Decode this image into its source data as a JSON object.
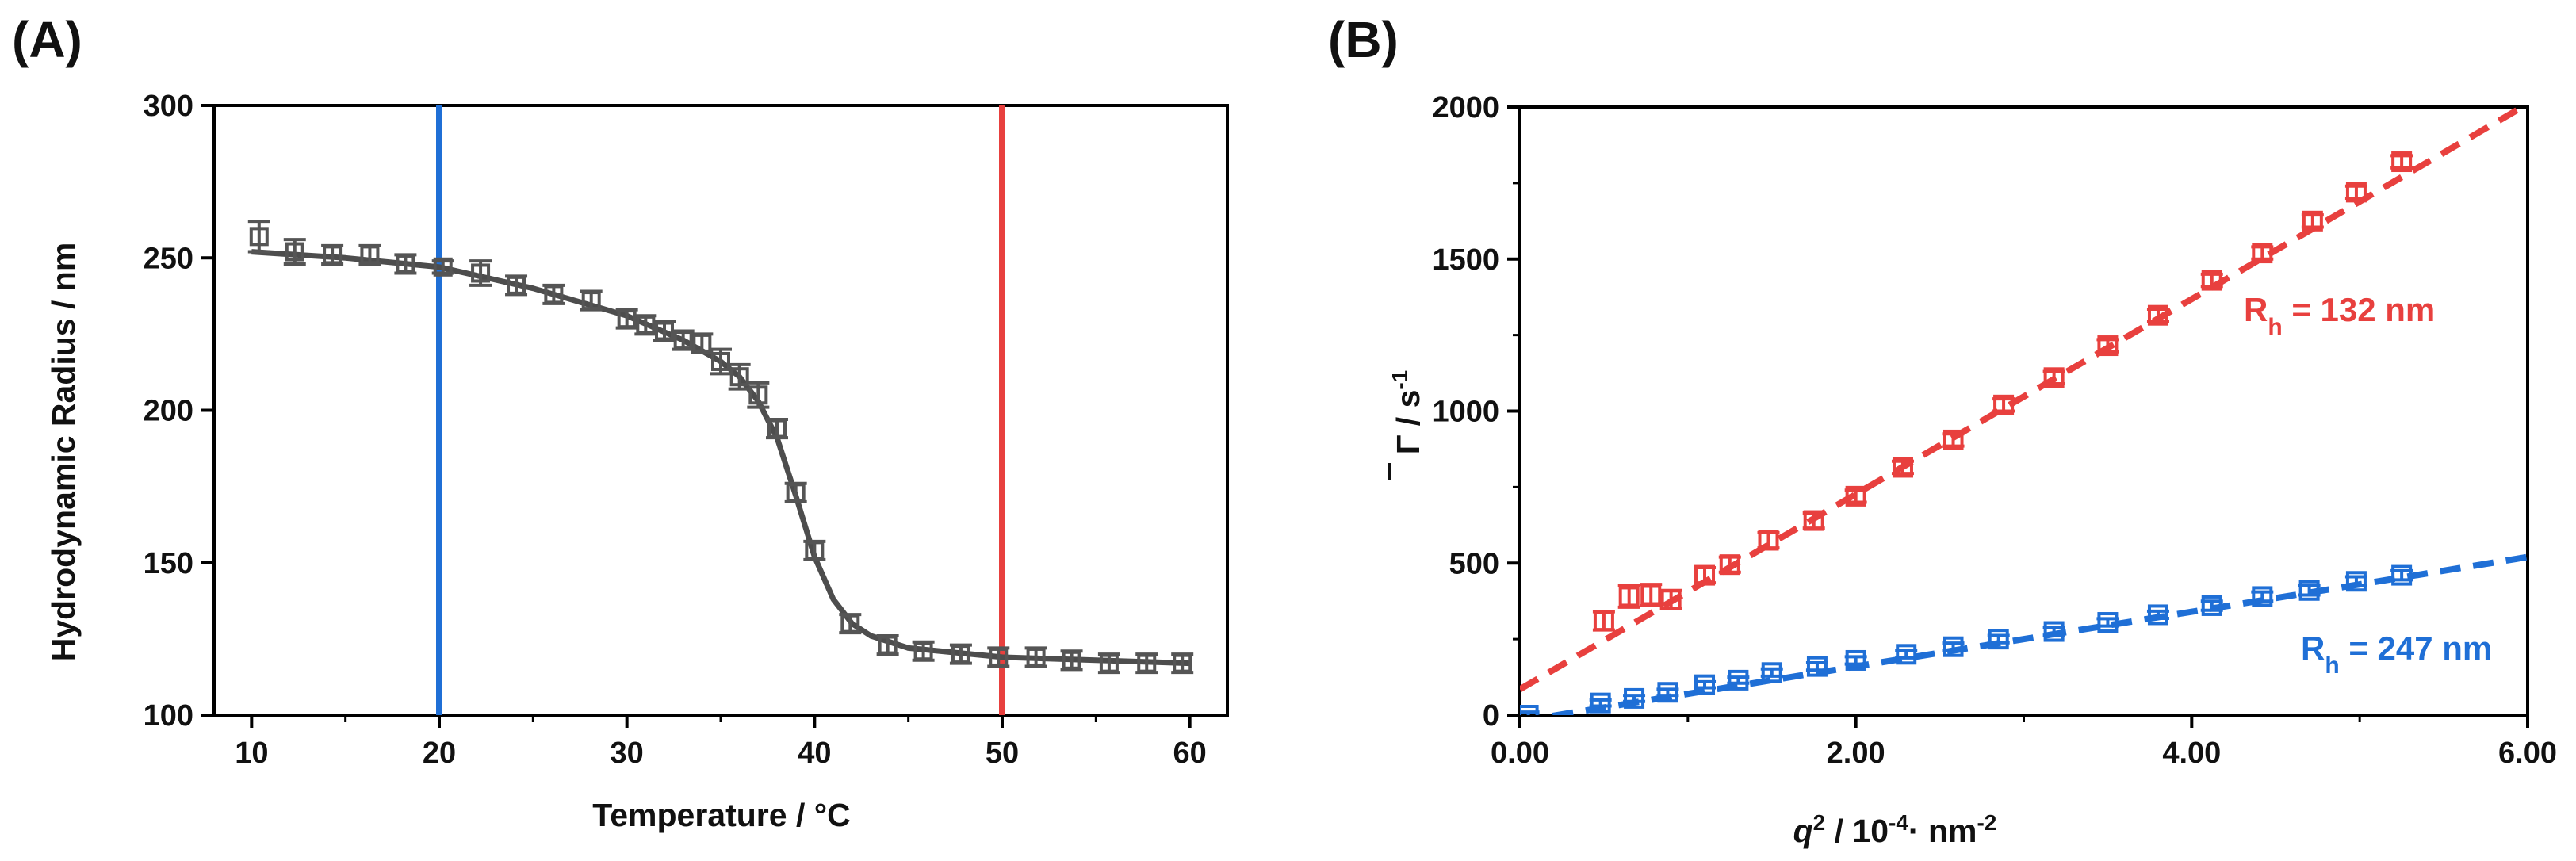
{
  "chart_data": [
    {
      "panel": "A",
      "type": "scatter",
      "panel_label": "(A)",
      "xlabel": "Temperature / °C",
      "ylabel": "Hydrodynamic Radius / nm",
      "xlim": [
        8,
        62
      ],
      "ylim": [
        100,
        300
      ],
      "xticks": [
        10,
        20,
        30,
        40,
        50,
        60
      ],
      "yticks": [
        100,
        150,
        200,
        250,
        300
      ],
      "colors": {
        "data": "#555555",
        "fit": "#4d4d4d",
        "line_20": "#1f6fd6",
        "line_50": "#e8403e"
      },
      "reference_lines_x": [
        20,
        50
      ],
      "series": [
        {
          "name": "data",
          "x": [
            10.4,
            12.3,
            14.3,
            16.3,
            18.2,
            20.2,
            22.2,
            24.1,
            26.1,
            28.1,
            30.0,
            31.0,
            32.0,
            33.0,
            34.0,
            35.0,
            36.0,
            37.0,
            38.0,
            39.0,
            40.0,
            41.9,
            43.9,
            45.8,
            47.8,
            49.8,
            51.8,
            53.7,
            55.7,
            57.7,
            59.6
          ],
          "y": [
            257,
            252,
            251,
            251,
            248,
            247,
            245,
            241,
            238,
            236,
            230,
            228,
            226,
            223,
            222,
            216,
            211,
            205,
            194,
            173,
            154,
            130,
            123,
            121,
            120,
            119,
            119,
            118,
            117,
            117,
            117
          ],
          "err": [
            5,
            4,
            3,
            3,
            3,
            2,
            4,
            3,
            3,
            3,
            3,
            3,
            3,
            3,
            3,
            4,
            4,
            4,
            3,
            3,
            3,
            3,
            3,
            3,
            3,
            3,
            3,
            3,
            3,
            3,
            3
          ]
        }
      ],
      "fit": {
        "name": "sigmoidal fit",
        "x": [
          10,
          15,
          20,
          25,
          30,
          33,
          35,
          36,
          37,
          38,
          39,
          40,
          41,
          42,
          43,
          45,
          50,
          55,
          60
        ],
        "y": [
          252,
          250,
          247,
          240,
          231,
          223,
          216,
          211,
          203,
          191,
          172,
          152,
          138,
          130,
          126,
          122,
          119,
          118,
          117
        ]
      }
    },
    {
      "panel": "B",
      "type": "scatter",
      "panel_label": "(B)",
      "xlabel_main": "q",
      "xlabel_sup": "2",
      "xlabel_rest": " / 10",
      "xlabel_sup2": "-4",
      "xlabel_rest2": "· nm",
      "xlabel_sup3": "-2",
      "ylabel_main": "Γ",
      "ylabel_rest": " / s",
      "ylabel_sup": "-1",
      "xlim": [
        0,
        6
      ],
      "ylim": [
        0,
        2000
      ],
      "xticks": [
        0,
        2,
        4,
        6
      ],
      "xtick_labels": [
        "0.00",
        "2.00",
        "4.00",
        "6.00"
      ],
      "yticks": [
        0,
        500,
        1000,
        1500,
        2000
      ],
      "colors": {
        "red": "#e8403e",
        "blue": "#1f6fd6"
      },
      "annotations": [
        {
          "series": "red",
          "text_main": "R",
          "text_sub": "h",
          "text_rest": " = 132 nm"
        },
        {
          "series": "blue",
          "text_main": "R",
          "text_sub": "h",
          "text_rest": " = 247 nm"
        }
      ],
      "series": [
        {
          "name": "red",
          "x": [
            0.5,
            0.65,
            0.78,
            0.9,
            1.1,
            1.25,
            1.48,
            1.75,
            2.0,
            2.28,
            2.58,
            2.88,
            3.18,
            3.5,
            3.8,
            4.12,
            4.42,
            4.72,
            4.98,
            5.25
          ],
          "y": [
            310,
            390,
            395,
            380,
            460,
            495,
            575,
            640,
            720,
            815,
            905,
            1020,
            1110,
            1215,
            1315,
            1430,
            1520,
            1625,
            1720,
            1820
          ],
          "err": [
            30,
            35,
            35,
            30,
            25,
            25,
            25,
            25,
            20,
            20,
            20,
            20,
            20,
            20,
            20,
            20,
            20,
            20,
            20,
            20
          ]
        },
        {
          "name": "blue",
          "x": [
            0.05,
            0.48,
            0.68,
            0.88,
            1.1,
            1.3,
            1.5,
            1.77,
            2.0,
            2.3,
            2.58,
            2.85,
            3.18,
            3.5,
            3.8,
            4.12,
            4.42,
            4.7,
            4.98,
            5.25
          ],
          "y": [
            0,
            40,
            55,
            75,
            100,
            115,
            140,
            160,
            180,
            200,
            225,
            250,
            275,
            305,
            330,
            360,
            390,
            410,
            440,
            460
          ],
          "err": [
            10,
            10,
            10,
            10,
            10,
            10,
            12,
            12,
            12,
            12,
            12,
            12,
            12,
            12,
            12,
            15,
            15,
            15,
            15,
            15
          ]
        }
      ],
      "fits": [
        {
          "name": "red",
          "x": [
            0,
            6
          ],
          "y": [
            85,
            2010
          ]
        },
        {
          "name": "blue",
          "x": [
            0,
            6
          ],
          "y": [
            -20,
            520
          ]
        }
      ]
    }
  ]
}
